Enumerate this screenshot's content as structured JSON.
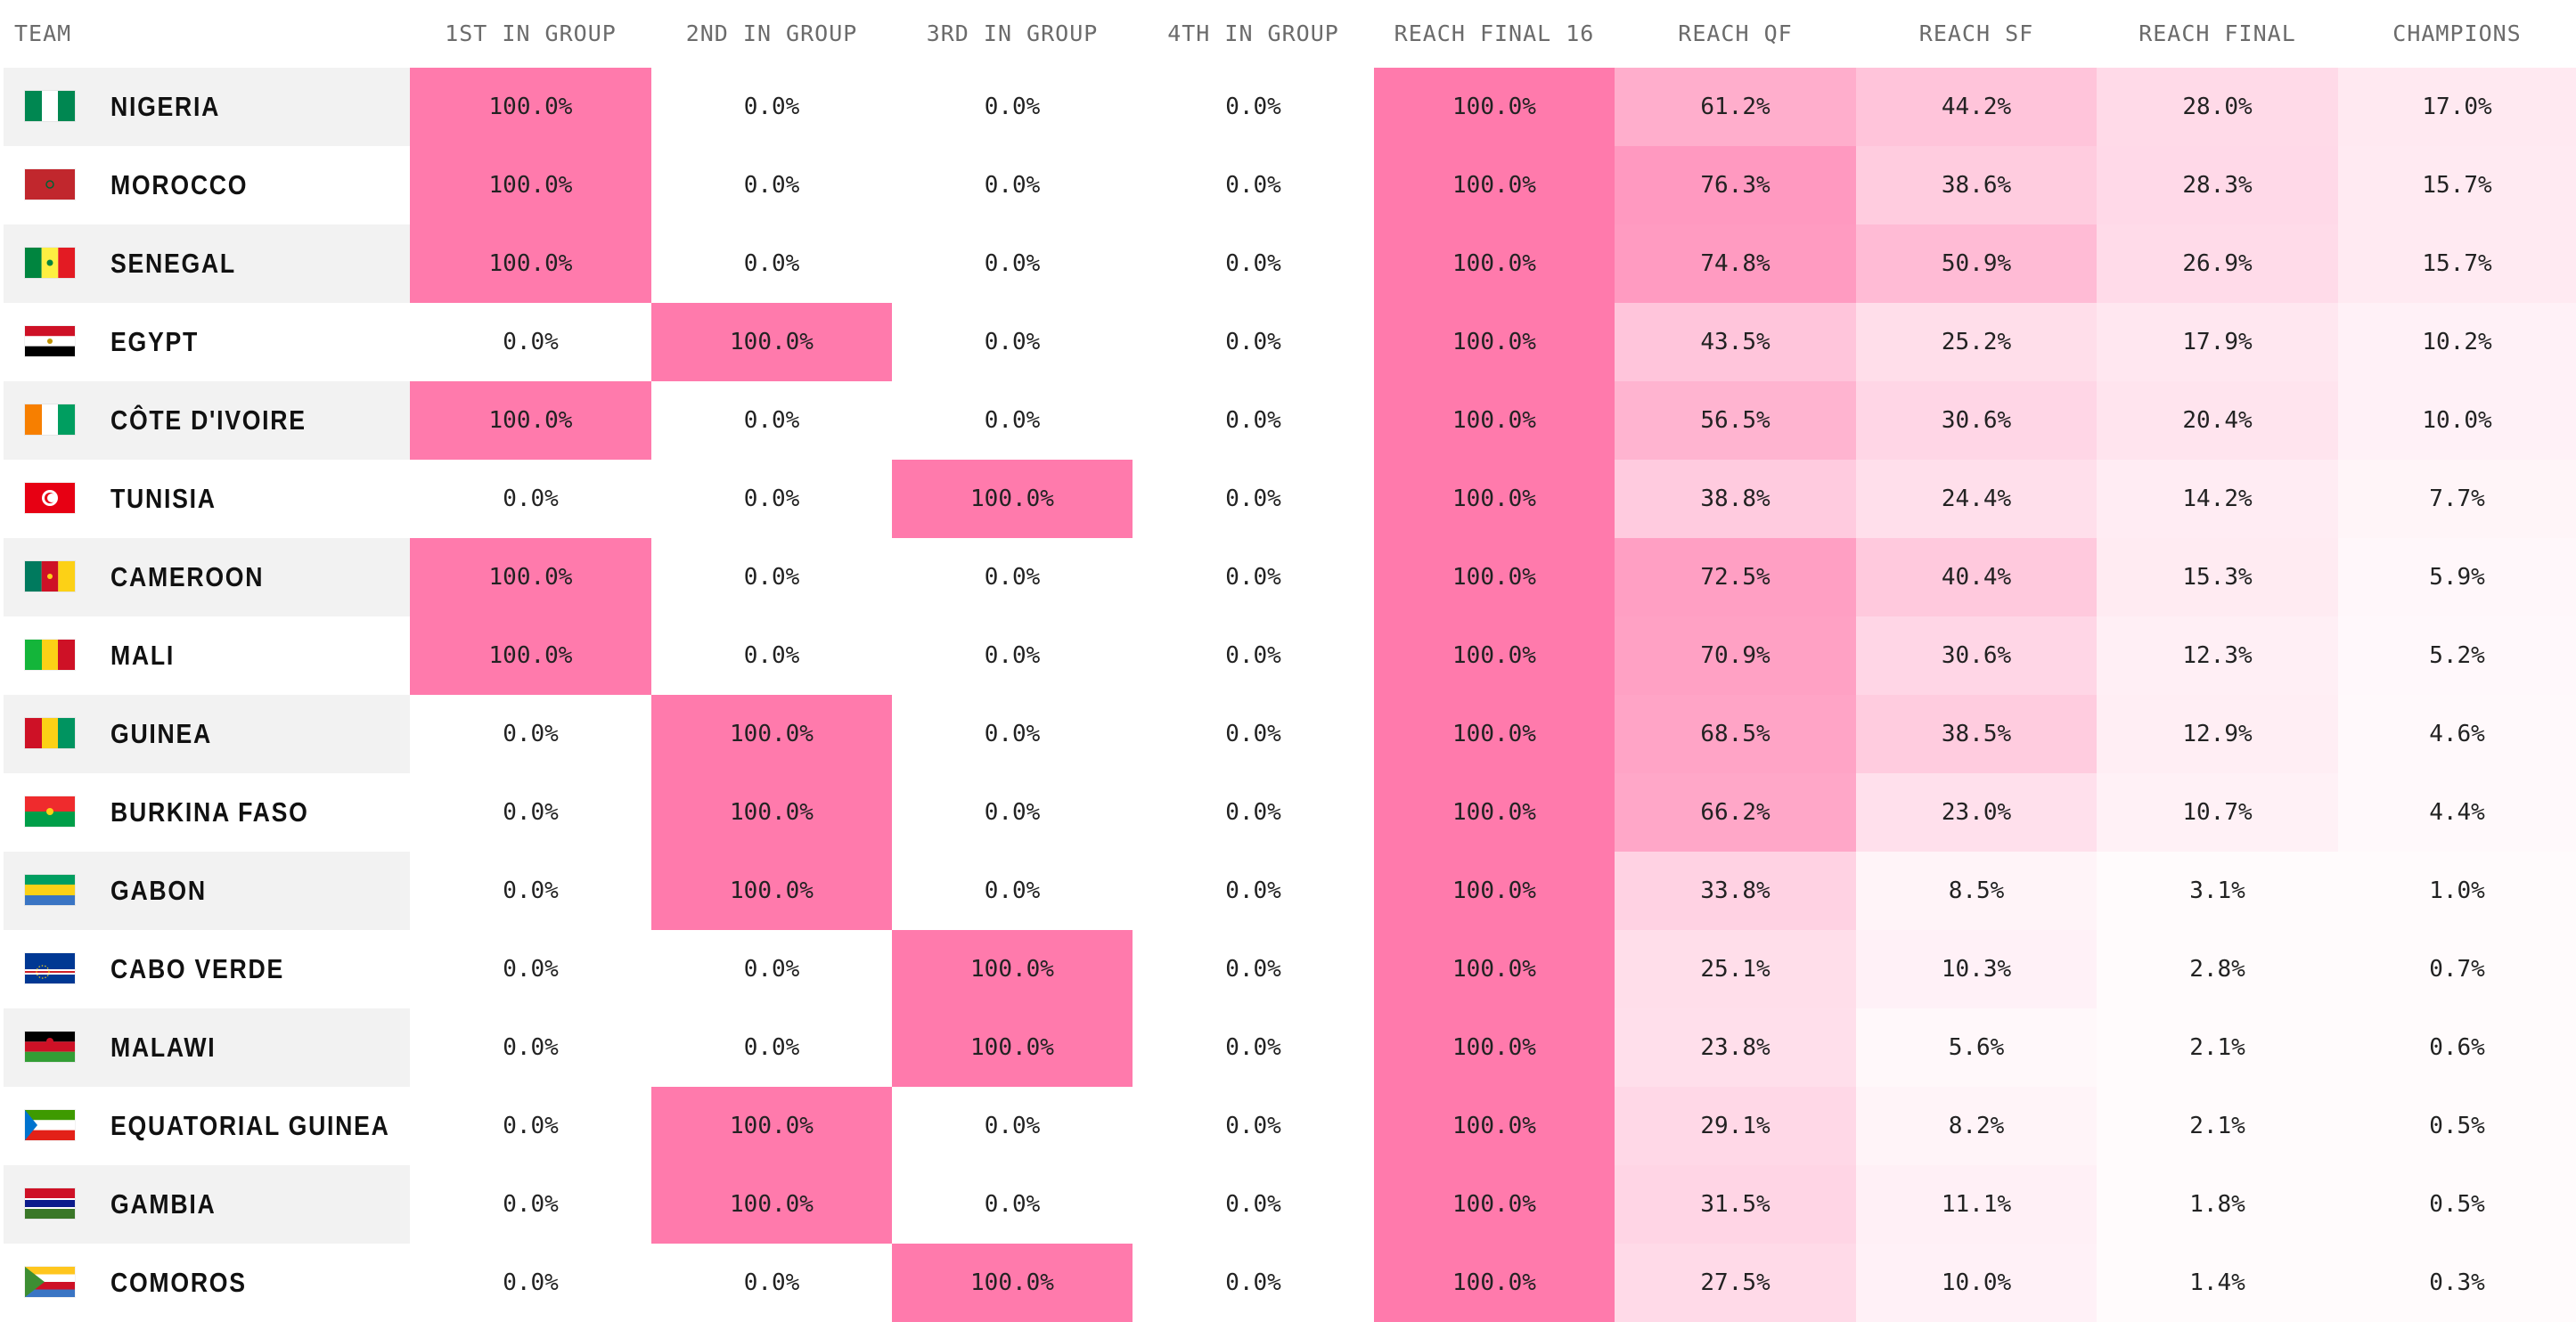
{
  "columns": [
    "TEAM",
    "1ST IN GROUP",
    "2ND IN GROUP",
    "3RD IN GROUP",
    "4TH IN GROUP",
    "REACH FINAL 16",
    "REACH QF",
    "REACH SF",
    "REACH FINAL",
    "CHAMPIONS"
  ],
  "colors": {
    "accent": "#ff7aac",
    "row_shade": "#f2f2f2"
  },
  "rows": [
    {
      "team": "NIGERIA",
      "flag": "flag-nigeria-icon",
      "values": [
        "100.0%",
        "0.0%",
        "0.0%",
        "0.0%",
        "100.0%",
        "61.2%",
        "44.2%",
        "28.0%",
        "17.0%"
      ]
    },
    {
      "team": "MOROCCO",
      "flag": "flag-morocco-icon",
      "values": [
        "100.0%",
        "0.0%",
        "0.0%",
        "0.0%",
        "100.0%",
        "76.3%",
        "38.6%",
        "28.3%",
        "15.7%"
      ]
    },
    {
      "team": "SENEGAL",
      "flag": "flag-senegal-icon",
      "values": [
        "100.0%",
        "0.0%",
        "0.0%",
        "0.0%",
        "100.0%",
        "74.8%",
        "50.9%",
        "26.9%",
        "15.7%"
      ]
    },
    {
      "team": "EGYPT",
      "flag": "flag-egypt-icon",
      "values": [
        "0.0%",
        "100.0%",
        "0.0%",
        "0.0%",
        "100.0%",
        "43.5%",
        "25.2%",
        "17.9%",
        "10.2%"
      ]
    },
    {
      "team": "CÔTE D'IVOIRE",
      "flag": "flag-cote-divoire-icon",
      "values": [
        "100.0%",
        "0.0%",
        "0.0%",
        "0.0%",
        "100.0%",
        "56.5%",
        "30.6%",
        "20.4%",
        "10.0%"
      ]
    },
    {
      "team": "TUNISIA",
      "flag": "flag-tunisia-icon",
      "values": [
        "0.0%",
        "0.0%",
        "100.0%",
        "0.0%",
        "100.0%",
        "38.8%",
        "24.4%",
        "14.2%",
        "7.7%"
      ]
    },
    {
      "team": "CAMEROON",
      "flag": "flag-cameroon-icon",
      "values": [
        "100.0%",
        "0.0%",
        "0.0%",
        "0.0%",
        "100.0%",
        "72.5%",
        "40.4%",
        "15.3%",
        "5.9%"
      ]
    },
    {
      "team": "MALI",
      "flag": "flag-mali-icon",
      "values": [
        "100.0%",
        "0.0%",
        "0.0%",
        "0.0%",
        "100.0%",
        "70.9%",
        "30.6%",
        "12.3%",
        "5.2%"
      ]
    },
    {
      "team": "GUINEA",
      "flag": "flag-guinea-icon",
      "values": [
        "0.0%",
        "100.0%",
        "0.0%",
        "0.0%",
        "100.0%",
        "68.5%",
        "38.5%",
        "12.9%",
        "4.6%"
      ]
    },
    {
      "team": "BURKINA FASO",
      "flag": "flag-burkina-faso-icon",
      "values": [
        "0.0%",
        "100.0%",
        "0.0%",
        "0.0%",
        "100.0%",
        "66.2%",
        "23.0%",
        "10.7%",
        "4.4%"
      ]
    },
    {
      "team": "GABON",
      "flag": "flag-gabon-icon",
      "values": [
        "0.0%",
        "100.0%",
        "0.0%",
        "0.0%",
        "100.0%",
        "33.8%",
        "8.5%",
        "3.1%",
        "1.0%"
      ]
    },
    {
      "team": "CABO VERDE",
      "flag": "flag-cabo-verde-icon",
      "values": [
        "0.0%",
        "0.0%",
        "100.0%",
        "0.0%",
        "100.0%",
        "25.1%",
        "10.3%",
        "2.8%",
        "0.7%"
      ]
    },
    {
      "team": "MALAWI",
      "flag": "flag-malawi-icon",
      "values": [
        "0.0%",
        "0.0%",
        "100.0%",
        "0.0%",
        "100.0%",
        "23.8%",
        "5.6%",
        "2.1%",
        "0.6%"
      ]
    },
    {
      "team": "EQUATORIAL GUINEA",
      "flag": "flag-equatorial-guinea-icon",
      "values": [
        "0.0%",
        "100.0%",
        "0.0%",
        "0.0%",
        "100.0%",
        "29.1%",
        "8.2%",
        "2.1%",
        "0.5%"
      ]
    },
    {
      "team": "GAMBIA",
      "flag": "flag-gambia-icon",
      "values": [
        "0.0%",
        "100.0%",
        "0.0%",
        "0.0%",
        "100.0%",
        "31.5%",
        "11.1%",
        "1.8%",
        "0.5%"
      ]
    },
    {
      "team": "COMOROS",
      "flag": "flag-comoros-icon",
      "values": [
        "0.0%",
        "0.0%",
        "100.0%",
        "0.0%",
        "100.0%",
        "27.5%",
        "10.0%",
        "1.4%",
        "0.3%"
      ]
    }
  ]
}
